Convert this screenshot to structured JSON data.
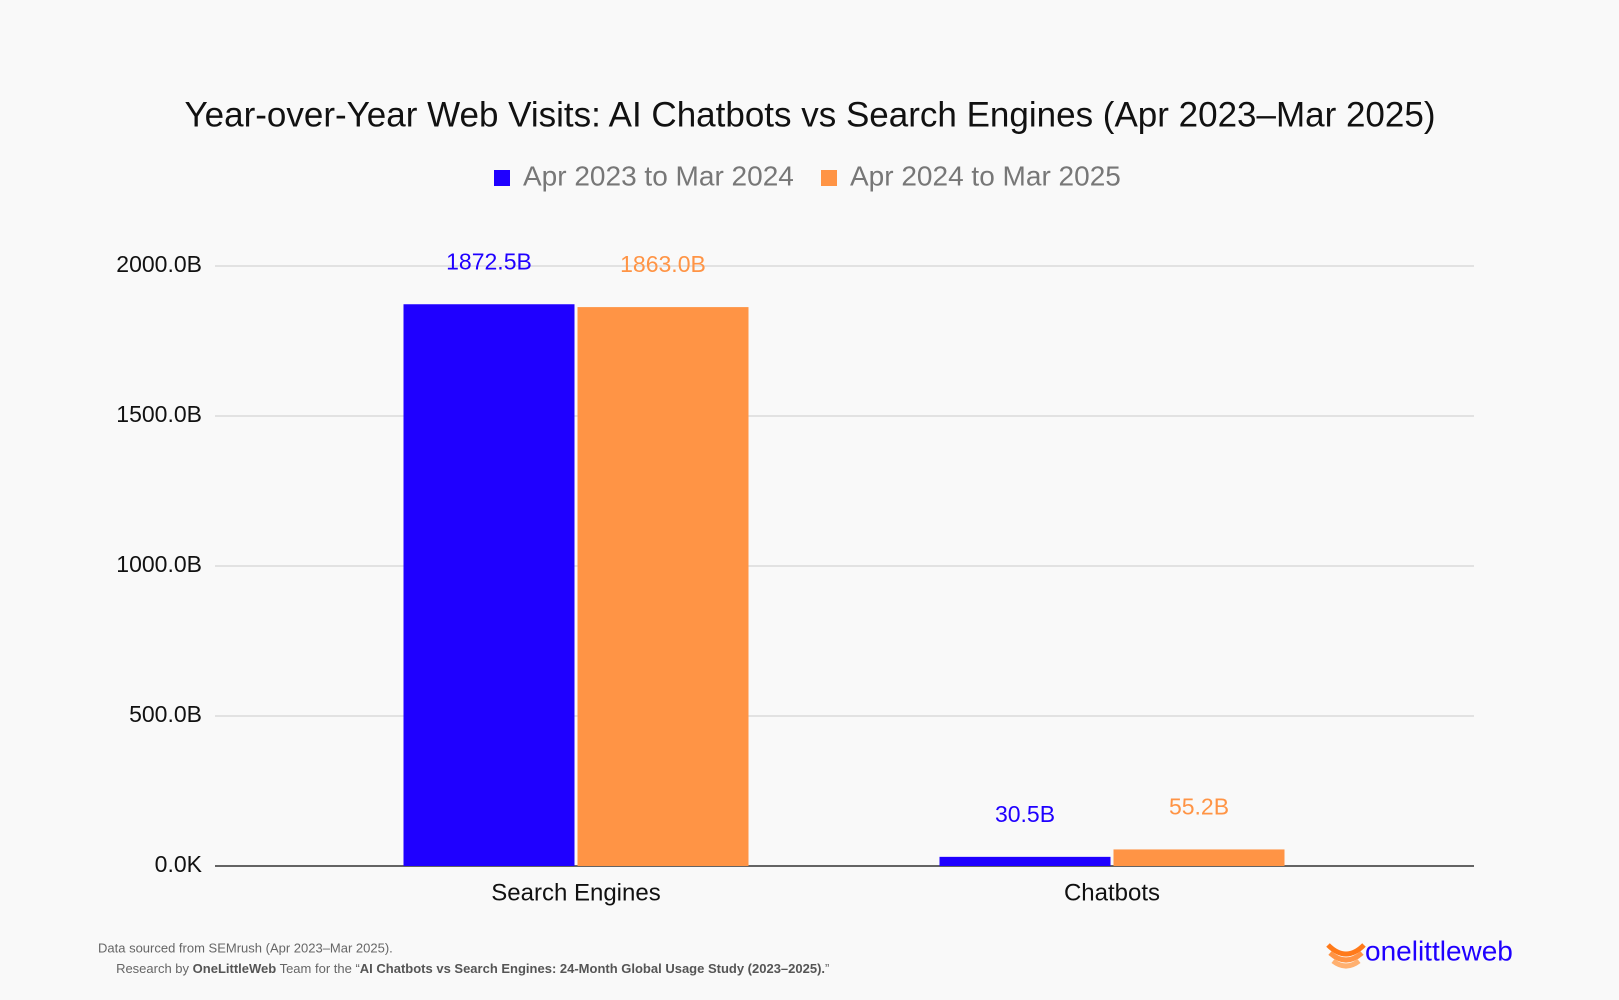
{
  "chart_data": {
    "type": "bar",
    "title": "Year-over-Year Web Visits: AI Chatbots vs Search Engines (Apr 2023–Mar 2025)",
    "categories": [
      "Search Engines",
      "Chatbots"
    ],
    "series": [
      {
        "name": "Apr 2023 to Mar 2024",
        "color": "#1f00ff",
        "values": [
          1872.5,
          30.5
        ],
        "value_labels": [
          "1872.5B",
          "30.5B"
        ]
      },
      {
        "name": "Apr 2024 to Mar 2025",
        "color": "#ff9445",
        "values": [
          1863.0,
          55.2
        ],
        "value_labels": [
          "1863.0B",
          "55.2B"
        ]
      }
    ],
    "ylim": [
      0,
      2000
    ],
    "yticks": [
      {
        "value": 0,
        "label": "0.0K"
      },
      {
        "value": 500,
        "label": "500.0B"
      },
      {
        "value": 1000,
        "label": "1000.0B"
      },
      {
        "value": 1500,
        "label": "1500.0B"
      },
      {
        "value": 2000,
        "label": "2000.0B"
      }
    ],
    "grid": true,
    "legend": "top"
  },
  "footer": {
    "source": "Data sourced from SEMrush (Apr 2023–Mar 2025).",
    "credit": [
      "Research by ",
      "OneLittleWeb",
      " Team for the “",
      "AI Chatbots vs Search Engines: 24-Month Global Usage Study (2023–2025).",
      "”"
    ]
  },
  "logo": "onelittleweb"
}
